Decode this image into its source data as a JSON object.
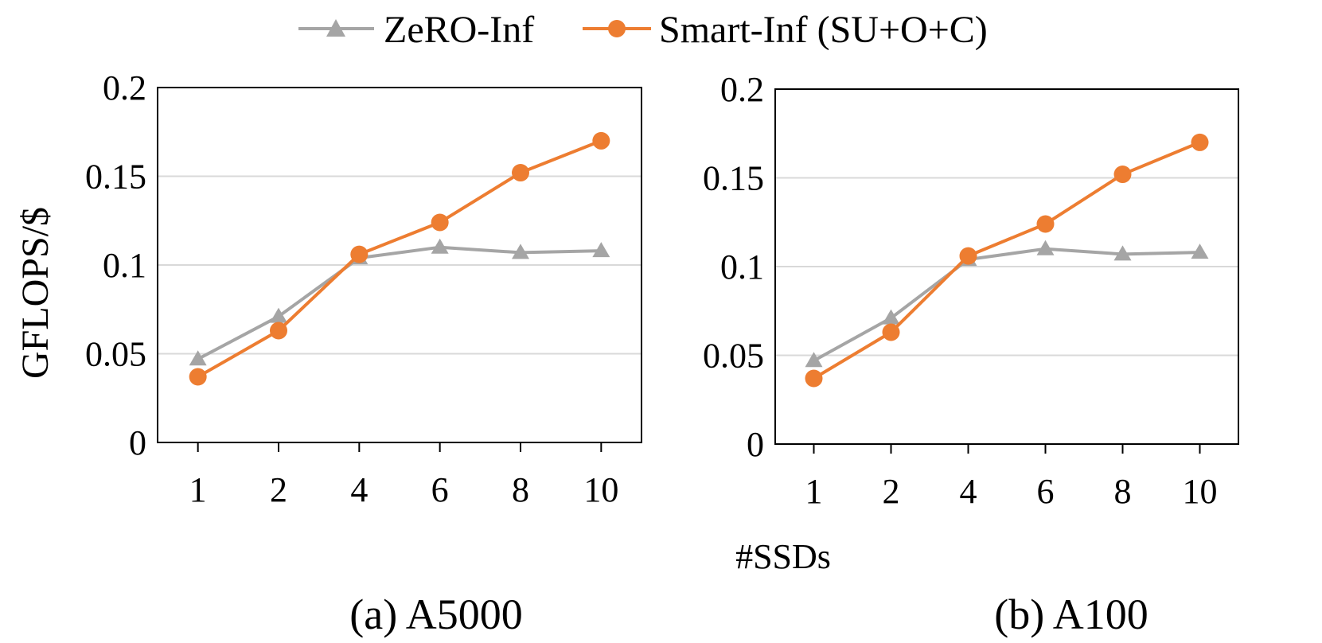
{
  "legend": {
    "position": "top-center",
    "items": [
      {
        "label": "ZeRO-Inf",
        "color": "#a5a5a5",
        "marker": "triangle-icon"
      },
      {
        "label": "Smart-Inf (SU+O+C)",
        "color": "#ed7d31",
        "marker": "circle-icon"
      }
    ]
  },
  "ylabel": "GFLOPS/$",
  "xlabel": "#SSDs",
  "chart_data": [
    {
      "type": "line",
      "caption": "(a) A5000",
      "categories": [
        "1",
        "2",
        "4",
        "6",
        "8",
        "10"
      ],
      "y_ticks": [
        "0",
        "0.05",
        "0.1",
        "0.15",
        "0.2"
      ],
      "ylim": [
        0,
        0.2
      ],
      "grid": true,
      "series": [
        {
          "name": "ZeRO-Inf",
          "color": "#a5a5a5",
          "marker": "triangle",
          "values": [
            0.047,
            0.071,
            0.104,
            0.11,
            0.107,
            0.108
          ]
        },
        {
          "name": "Smart-Inf (SU+O+C)",
          "color": "#ed7d31",
          "marker": "circle",
          "values": [
            0.037,
            0.063,
            0.106,
            0.124,
            0.152,
            0.17
          ]
        }
      ]
    },
    {
      "type": "line",
      "caption": "(b) A100",
      "categories": [
        "1",
        "2",
        "4",
        "6",
        "8",
        "10"
      ],
      "y_ticks": [
        "0",
        "0.05",
        "0.1",
        "0.15",
        "0.2"
      ],
      "ylim": [
        0,
        0.2
      ],
      "grid": true,
      "series": [
        {
          "name": "ZeRO-Inf",
          "color": "#a5a5a5",
          "marker": "triangle",
          "values": [
            0.047,
            0.071,
            0.104,
            0.11,
            0.107,
            0.108
          ]
        },
        {
          "name": "Smart-Inf (SU+O+C)",
          "color": "#ed7d31",
          "marker": "circle",
          "values": [
            0.037,
            0.063,
            0.106,
            0.124,
            0.152,
            0.17
          ]
        }
      ]
    }
  ]
}
